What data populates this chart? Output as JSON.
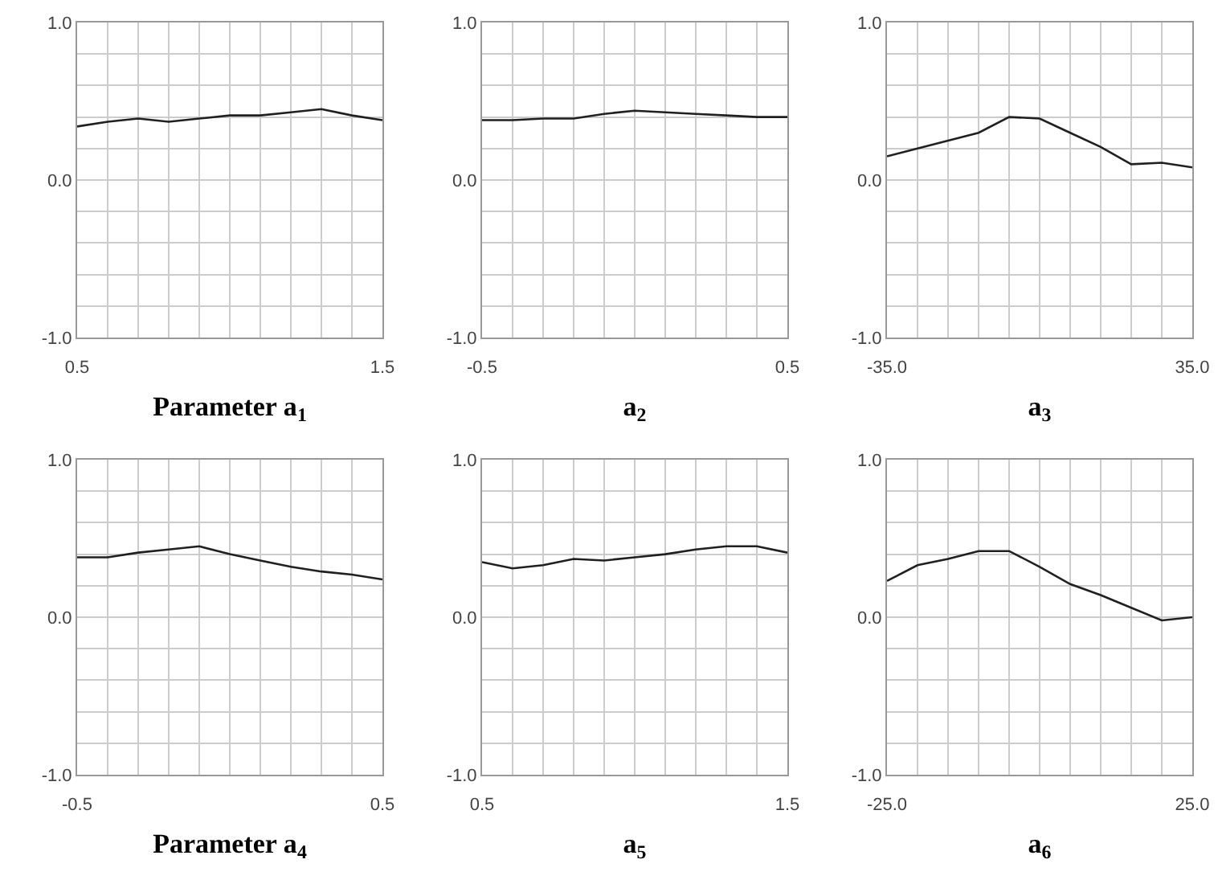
{
  "chart_data": [
    {
      "type": "line",
      "xlabel": "Parameter a$_{1}$",
      "x": [
        0.5,
        0.6,
        0.7,
        0.8,
        0.9,
        1.0,
        1.1,
        1.2,
        1.3,
        1.4,
        1.5
      ],
      "values": [
        0.34,
        0.37,
        0.39,
        0.37,
        0.39,
        0.41,
        0.41,
        0.43,
        0.45,
        0.41,
        0.38
      ],
      "color": "#202020",
      "xlim": [
        0.5,
        1.5
      ],
      "ylim": [
        -1,
        1
      ],
      "xticks": [
        {
          "value": 0.5,
          "label": "0.5"
        },
        {
          "value": 0.6,
          "label": null
        },
        {
          "value": 0.7,
          "label": null
        },
        {
          "value": 0.8,
          "label": null
        },
        {
          "value": 0.9,
          "label": null
        },
        {
          "value": 1.0,
          "label": null
        },
        {
          "value": 1.1,
          "label": null
        },
        {
          "value": 1.2,
          "label": null
        },
        {
          "value": 1.3,
          "label": null
        },
        {
          "value": 1.4,
          "label": null
        },
        {
          "value": 1.5,
          "label": "1.5"
        }
      ],
      "yticks": [
        {
          "value": -1,
          "label": "-1.0"
        },
        {
          "value": -0.8,
          "label": null
        },
        {
          "value": -0.6,
          "label": null
        },
        {
          "value": -0.4,
          "label": null
        },
        {
          "value": -0.2,
          "label": null
        },
        {
          "value": 0,
          "label": "0.0"
        },
        {
          "value": 0.2,
          "label": null
        },
        {
          "value": 0.4,
          "label": null
        },
        {
          "value": 0.6,
          "label": null
        },
        {
          "value": 0.8,
          "label": null
        },
        {
          "value": 1,
          "label": "1.0"
        }
      ],
      "grid": true
    },
    {
      "type": "line",
      "xlabel": "a$_{2}$",
      "x": [
        -0.5,
        -0.4,
        -0.3,
        -0.2,
        -0.1,
        0,
        0.1,
        0.2,
        0.3,
        0.4,
        0.5
      ],
      "values": [
        0.38,
        0.38,
        0.39,
        0.39,
        0.42,
        0.44,
        0.43,
        0.42,
        0.41,
        0.4,
        0.4
      ],
      "color": "#202020",
      "xlim": [
        -0.5,
        0.5
      ],
      "ylim": [
        -1,
        1
      ],
      "xticks": [
        {
          "value": -0.5,
          "label": "-0.5"
        },
        {
          "value": -0.4,
          "label": null
        },
        {
          "value": -0.3,
          "label": null
        },
        {
          "value": -0.2,
          "label": null
        },
        {
          "value": -0.1,
          "label": null
        },
        {
          "value": 0,
          "label": null
        },
        {
          "value": 0.1,
          "label": null
        },
        {
          "value": 0.2,
          "label": null
        },
        {
          "value": 0.3,
          "label": null
        },
        {
          "value": 0.4,
          "label": null
        },
        {
          "value": 0.5,
          "label": "0.5"
        }
      ],
      "yticks": [
        {
          "value": -1,
          "label": "-1.0"
        },
        {
          "value": -0.8,
          "label": null
        },
        {
          "value": -0.6,
          "label": null
        },
        {
          "value": -0.4,
          "label": null
        },
        {
          "value": -0.2,
          "label": null
        },
        {
          "value": 0,
          "label": "0.0"
        },
        {
          "value": 0.2,
          "label": null
        },
        {
          "value": 0.4,
          "label": null
        },
        {
          "value": 0.6,
          "label": null
        },
        {
          "value": 0.8,
          "label": null
        },
        {
          "value": 1,
          "label": "1.0"
        }
      ],
      "grid": true
    },
    {
      "type": "line",
      "xlabel": "a$_{3}$",
      "x": [
        -35,
        -28,
        -21,
        -14,
        -7,
        0,
        7,
        14,
        21,
        28,
        35
      ],
      "values": [
        0.15,
        0.2,
        0.25,
        0.3,
        0.4,
        0.39,
        0.3,
        0.21,
        0.1,
        0.11,
        0.08
      ],
      "color": "#202020",
      "xlim": [
        -35,
        35
      ],
      "ylim": [
        -1,
        1
      ],
      "xticks": [
        {
          "value": -35,
          "label": "-35.0"
        },
        {
          "value": -28,
          "label": null
        },
        {
          "value": -21,
          "label": null
        },
        {
          "value": -14,
          "label": null
        },
        {
          "value": -7,
          "label": null
        },
        {
          "value": 0,
          "label": null
        },
        {
          "value": 7,
          "label": null
        },
        {
          "value": 14,
          "label": null
        },
        {
          "value": 21,
          "label": null
        },
        {
          "value": 28,
          "label": null
        },
        {
          "value": 35,
          "label": "35.0"
        }
      ],
      "yticks": [
        {
          "value": -1,
          "label": "-1.0"
        },
        {
          "value": -0.8,
          "label": null
        },
        {
          "value": -0.6,
          "label": null
        },
        {
          "value": -0.4,
          "label": null
        },
        {
          "value": -0.2,
          "label": null
        },
        {
          "value": 0,
          "label": "0.0"
        },
        {
          "value": 0.2,
          "label": null
        },
        {
          "value": 0.4,
          "label": null
        },
        {
          "value": 0.6,
          "label": null
        },
        {
          "value": 0.8,
          "label": null
        },
        {
          "value": 1,
          "label": "1.0"
        }
      ],
      "grid": true
    },
    {
      "type": "line",
      "xlabel": "Parameter a$_{4}$",
      "x": [
        -0.5,
        -0.4,
        -0.3,
        -0.2,
        -0.1,
        0,
        0.1,
        0.2,
        0.3,
        0.4,
        0.5
      ],
      "values": [
        0.38,
        0.38,
        0.41,
        0.43,
        0.45,
        0.4,
        0.36,
        0.32,
        0.29,
        0.27,
        0.24
      ],
      "color": "#202020",
      "xlim": [
        -0.5,
        0.5
      ],
      "ylim": [
        -1,
        1
      ],
      "xticks": [
        {
          "value": -0.5,
          "label": "-0.5"
        },
        {
          "value": -0.4,
          "label": null
        },
        {
          "value": -0.3,
          "label": null
        },
        {
          "value": -0.2,
          "label": null
        },
        {
          "value": -0.1,
          "label": null
        },
        {
          "value": 0,
          "label": null
        },
        {
          "value": 0.1,
          "label": null
        },
        {
          "value": 0.2,
          "label": null
        },
        {
          "value": 0.3,
          "label": null
        },
        {
          "value": 0.4,
          "label": null
        },
        {
          "value": 0.5,
          "label": "0.5"
        }
      ],
      "yticks": [
        {
          "value": -1,
          "label": "-1.0"
        },
        {
          "value": -0.8,
          "label": null
        },
        {
          "value": -0.6,
          "label": null
        },
        {
          "value": -0.4,
          "label": null
        },
        {
          "value": -0.2,
          "label": null
        },
        {
          "value": 0,
          "label": "0.0"
        },
        {
          "value": 0.2,
          "label": null
        },
        {
          "value": 0.4,
          "label": null
        },
        {
          "value": 0.6,
          "label": null
        },
        {
          "value": 0.8,
          "label": null
        },
        {
          "value": 1,
          "label": "1.0"
        }
      ],
      "grid": true
    },
    {
      "type": "line",
      "xlabel": "a$_{5}$",
      "x": [
        0.5,
        0.6,
        0.7,
        0.8,
        0.9,
        1.0,
        1.1,
        1.2,
        1.3,
        1.4,
        1.5
      ],
      "values": [
        0.35,
        0.31,
        0.33,
        0.37,
        0.36,
        0.38,
        0.4,
        0.43,
        0.45,
        0.45,
        0.41
      ],
      "color": "#202020",
      "xlim": [
        0.5,
        1.5
      ],
      "ylim": [
        -1,
        1
      ],
      "xticks": [
        {
          "value": 0.5,
          "label": "0.5"
        },
        {
          "value": 0.6,
          "label": null
        },
        {
          "value": 0.7,
          "label": null
        },
        {
          "value": 0.8,
          "label": null
        },
        {
          "value": 0.9,
          "label": null
        },
        {
          "value": 1.0,
          "label": null
        },
        {
          "value": 1.1,
          "label": null
        },
        {
          "value": 1.2,
          "label": null
        },
        {
          "value": 1.3,
          "label": null
        },
        {
          "value": 1.4,
          "label": null
        },
        {
          "value": 1.5,
          "label": "1.5"
        }
      ],
      "yticks": [
        {
          "value": -1,
          "label": "-1.0"
        },
        {
          "value": -0.8,
          "label": null
        },
        {
          "value": -0.6,
          "label": null
        },
        {
          "value": -0.4,
          "label": null
        },
        {
          "value": -0.2,
          "label": null
        },
        {
          "value": 0,
          "label": "0.0"
        },
        {
          "value": 0.2,
          "label": null
        },
        {
          "value": 0.4,
          "label": null
        },
        {
          "value": 0.6,
          "label": null
        },
        {
          "value": 0.8,
          "label": null
        },
        {
          "value": 1,
          "label": "1.0"
        }
      ],
      "grid": true
    },
    {
      "type": "line",
      "xlabel": "a$_{6}$",
      "x": [
        -25,
        -20,
        -15,
        -10,
        -5,
        0,
        5,
        10,
        15,
        20,
        25
      ],
      "values": [
        0.23,
        0.33,
        0.37,
        0.42,
        0.42,
        0.32,
        0.21,
        0.14,
        0.06,
        -0.02,
        0
      ],
      "color": "#202020",
      "xlim": [
        -25,
        25
      ],
      "ylim": [
        -1,
        1
      ],
      "xticks": [
        {
          "value": -25,
          "label": "-25.0"
        },
        {
          "value": -20,
          "label": null
        },
        {
          "value": -15,
          "label": null
        },
        {
          "value": -10,
          "label": null
        },
        {
          "value": -5,
          "label": null
        },
        {
          "value": 0,
          "label": null
        },
        {
          "value": 5,
          "label": null
        },
        {
          "value": 10,
          "label": null
        },
        {
          "value": 15,
          "label": null
        },
        {
          "value": 20,
          "label": null
        },
        {
          "value": 25,
          "label": "25.0"
        }
      ],
      "yticks": [
        {
          "value": -1,
          "label": "-1.0"
        },
        {
          "value": -0.8,
          "label": null
        },
        {
          "value": -0.6,
          "label": null
        },
        {
          "value": -0.4,
          "label": null
        },
        {
          "value": -0.2,
          "label": null
        },
        {
          "value": 0,
          "label": "0.0"
        },
        {
          "value": 0.2,
          "label": null
        },
        {
          "value": 0.4,
          "label": null
        },
        {
          "value": 0.6,
          "label": null
        },
        {
          "value": 0.8,
          "label": null
        },
        {
          "value": 1,
          "label": "1.0"
        }
      ],
      "grid": true
    }
  ]
}
